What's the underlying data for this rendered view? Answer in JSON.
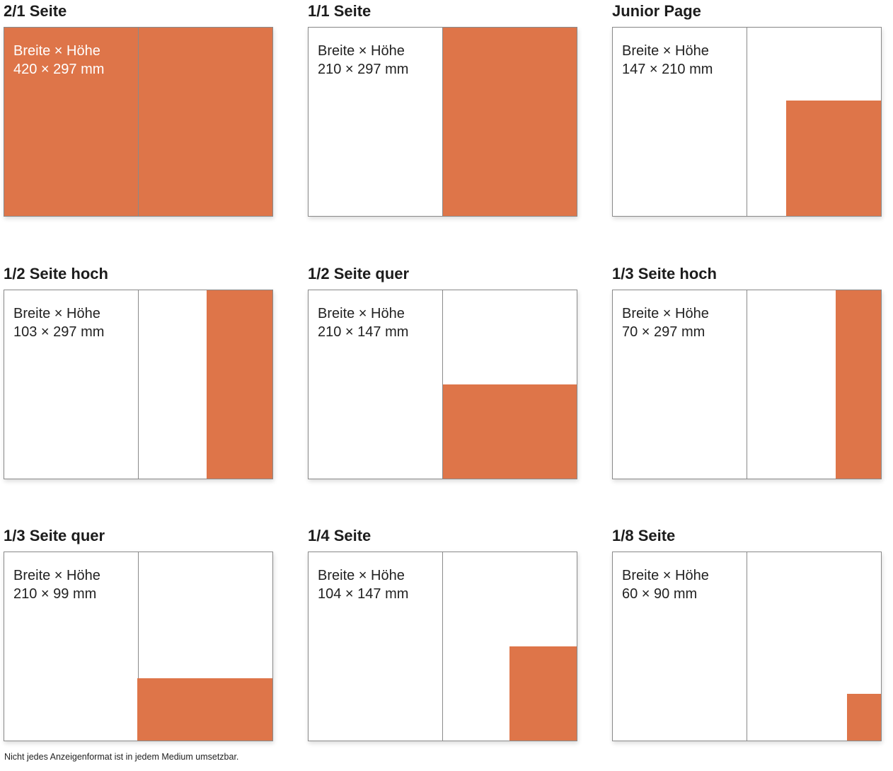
{
  "accent_color": "#de7549",
  "formats": [
    {
      "title": "2/1 Seite",
      "label": "Breite × Höhe",
      "size": "420 × 297 mm"
    },
    {
      "title": "1/1 Seite",
      "label": "Breite × Höhe",
      "size": "210 × 297 mm"
    },
    {
      "title": "Junior Page",
      "label": "Breite × Höhe",
      "size": "147 × 210 mm"
    },
    {
      "title": "1/2 Seite hoch",
      "label": "Breite × Höhe",
      "size": "103 × 297 mm"
    },
    {
      "title": "1/2 Seite quer",
      "label": "Breite × Höhe",
      "size": "210 × 147 mm"
    },
    {
      "title": "1/3 Seite hoch",
      "label": "Breite × Höhe",
      "size": "70 × 297 mm"
    },
    {
      "title": "1/3 Seite quer",
      "label": "Breite × Höhe",
      "size": "210 × 99 mm"
    },
    {
      "title": "1/4 Seite",
      "label": "Breite × Höhe",
      "size": "104 × 147 mm"
    },
    {
      "title": "1/8 Seite",
      "label": "Breite × Höhe",
      "size": "60 × 90 mm"
    }
  ],
  "footnote": "Nicht jedes Anzeigenformat ist in jedem Medium umsetzbar."
}
